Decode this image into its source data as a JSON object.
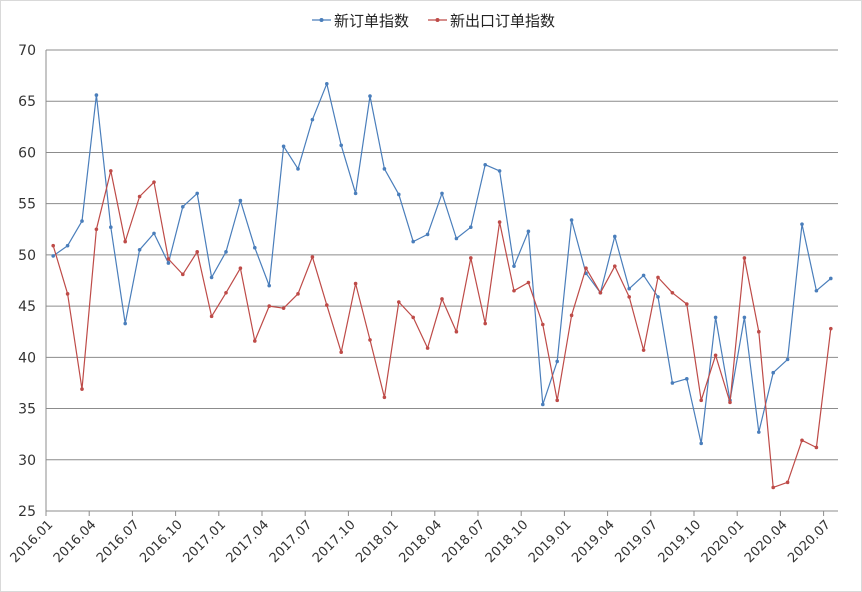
{
  "chart_data": {
    "type": "line",
    "title": "",
    "xlabel": "",
    "ylabel": "",
    "ylim": [
      25,
      70
    ],
    "yticks": [
      25,
      30,
      35,
      40,
      45,
      50,
      55,
      60,
      65,
      70
    ],
    "grid": true,
    "legend_position": "top-center",
    "x": [
      "2016.01",
      "2016.02",
      "2016.03",
      "2016.04",
      "2016.05",
      "2016.06",
      "2016.07",
      "2016.08",
      "2016.09",
      "2016.10",
      "2016.11",
      "2016.12",
      "2017.01",
      "2017.02",
      "2017.03",
      "2017.04",
      "2017.05",
      "2017.06",
      "2017.07",
      "2017.08",
      "2017.09",
      "2017.10",
      "2017.11",
      "2017.12",
      "2018.01",
      "2018.02",
      "2018.03",
      "2018.04",
      "2018.05",
      "2018.06",
      "2018.07",
      "2018.08",
      "2018.09",
      "2018.10",
      "2018.11",
      "2018.12",
      "2019.01",
      "2019.02",
      "2019.03",
      "2019.04",
      "2019.05",
      "2019.06",
      "2019.07",
      "2019.08",
      "2019.09",
      "2019.10",
      "2019.11",
      "2019.12",
      "2020.01",
      "2020.02",
      "2020.03",
      "2020.04",
      "2020.05",
      "2020.06",
      "2020.07"
    ],
    "xtick_labels": [
      "2016.01",
      "2016.04",
      "2016.07",
      "2016.10",
      "2017.01",
      "2017.04",
      "2017.07",
      "2017.10",
      "2018.01",
      "2018.04",
      "2018.07",
      "2018.10",
      "2019.01",
      "2019.04",
      "2019.07",
      "2019.10",
      "2020.01",
      "2020.04",
      "2020.07"
    ],
    "series": [
      {
        "name": "新订单指数",
        "color": "#4a7ebb",
        "values": [
          49.9,
          50.9,
          53.3,
          65.6,
          52.7,
          43.3,
          50.5,
          52.1,
          49.2,
          54.7,
          56.0,
          47.8,
          50.3,
          55.3,
          50.7,
          47.0,
          60.6,
          58.4,
          63.2,
          66.7,
          60.7,
          56.0,
          65.5,
          58.4,
          55.9,
          51.3,
          52.0,
          56.0,
          51.6,
          52.7,
          58.8,
          58.2,
          48.9,
          52.3,
          35.4,
          39.6,
          53.4,
          48.2,
          46.3,
          51.8,
          46.7,
          48.0,
          45.9,
          37.5,
          37.9,
          31.6,
          43.9,
          35.8,
          43.9,
          32.7,
          38.5,
          39.8,
          53.0,
          46.5,
          47.7
        ]
      },
      {
        "name": "新出口订单指数",
        "color": "#be4b48",
        "values": [
          50.9,
          46.2,
          36.9,
          52.5,
          58.2,
          51.3,
          55.7,
          57.1,
          49.6,
          48.1,
          50.3,
          44.0,
          46.3,
          48.7,
          41.6,
          45.0,
          44.8,
          46.2,
          49.8,
          45.1,
          40.5,
          47.2,
          41.7,
          36.1,
          45.4,
          43.9,
          40.9,
          45.7,
          42.5,
          49.7,
          43.3,
          53.2,
          46.5,
          47.3,
          43.2,
          35.8,
          44.1,
          48.7,
          46.3,
          48.9,
          45.9,
          40.7,
          47.8,
          46.3,
          45.2,
          35.8,
          40.2,
          35.6,
          49.7,
          42.5,
          27.3,
          27.8,
          31.9,
          31.2,
          42.8
        ]
      }
    ]
  }
}
